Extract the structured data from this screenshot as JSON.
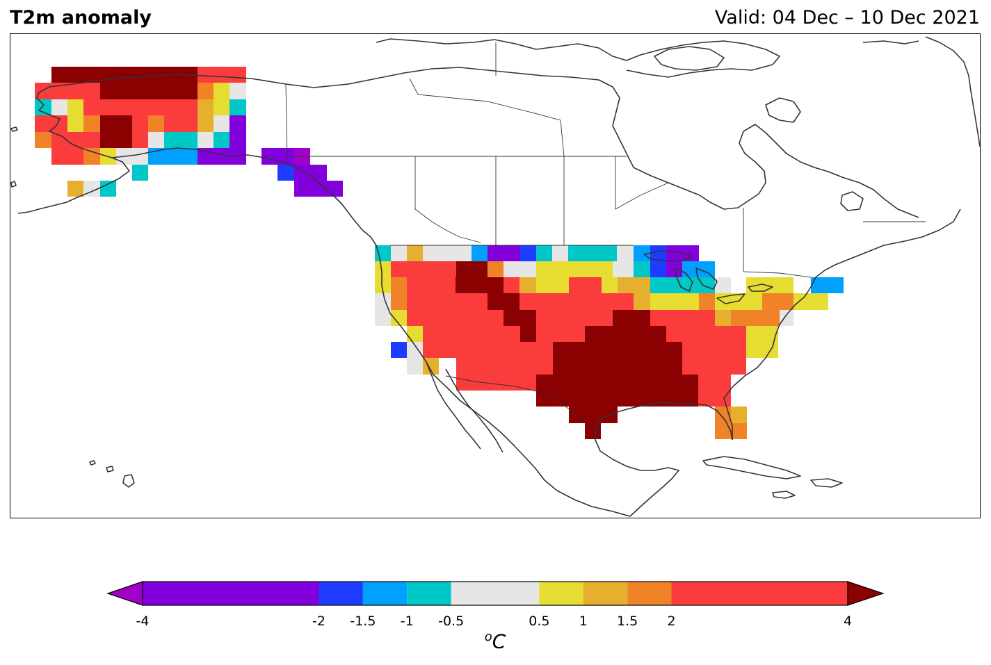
{
  "header": {
    "title": "T2m anomaly",
    "valid": "Valid: 04 Dec – 10 Dec 2021"
  },
  "map": {
    "region": "North America",
    "projection": "lat-lon",
    "variable": "2 m temperature anomaly",
    "colorbar": {
      "unit_prefix": "o",
      "unit_main": "C",
      "boundaries": [
        -4,
        -2,
        -1.5,
        -1,
        -0.5,
        0.5,
        1,
        1.5,
        2,
        4
      ],
      "tick_labels": [
        "-4",
        "-2",
        "-1.5",
        "-1",
        "-0.5",
        "0.5",
        "1",
        "1.5",
        "2",
        "4"
      ],
      "colors": [
        "#8200dc",
        "#1e3cff",
        "#00a0ff",
        "#00c8c8",
        "#e6e6e6",
        "#e6dc32",
        "#e6af2d",
        "#f08228",
        "#fa3c3c"
      ],
      "under_color": "#a000c8",
      "over_color": "#8b0000",
      "extend": "both"
    }
  }
}
